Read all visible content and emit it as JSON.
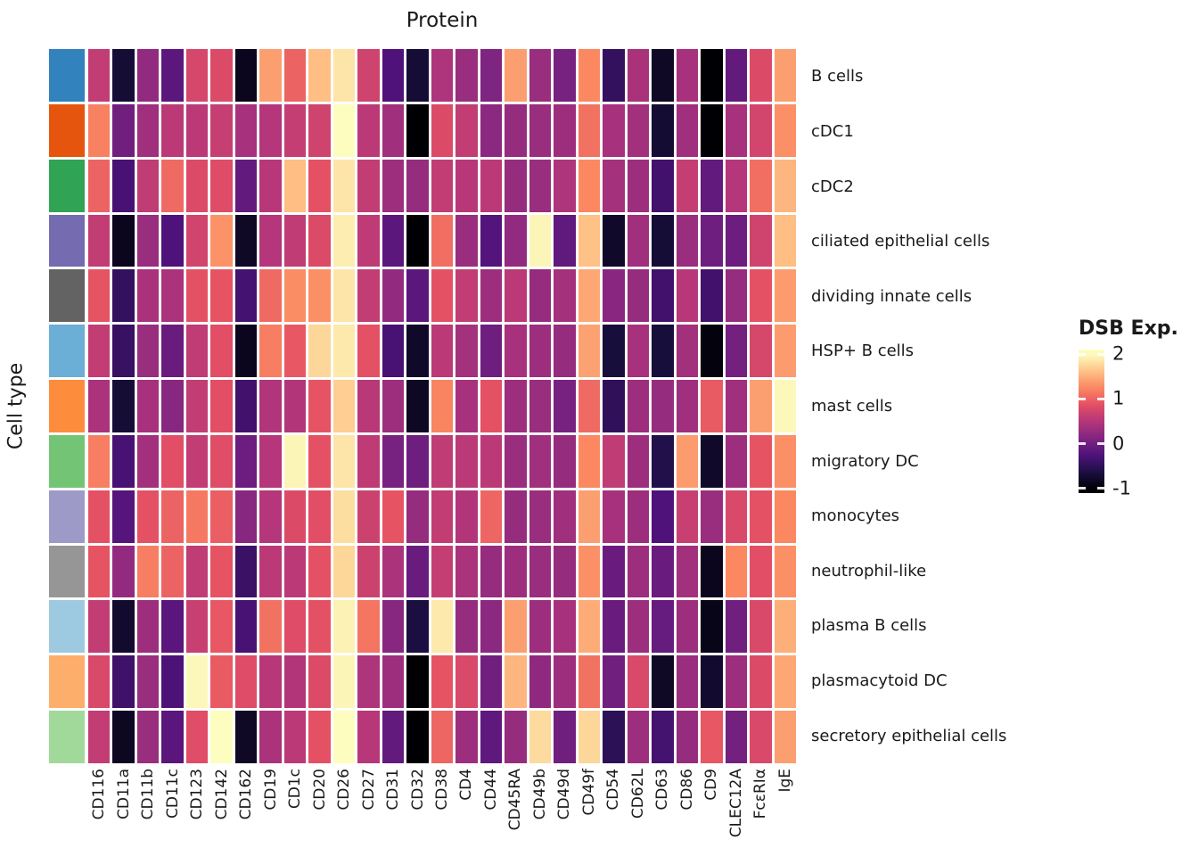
{
  "title": "Protein",
  "y_axis_label": "Cell type",
  "legend": {
    "title": "DSB Exp."
  },
  "chart_data": {
    "type": "heatmap",
    "title": "Protein",
    "xlabel": "Protein",
    "ylabel": "Cell type",
    "legend_title": "DSB Exp.",
    "columns": [
      "CD116",
      "CD11a",
      "CD11b",
      "CD11c",
      "CD123",
      "CD142",
      "CD162",
      "CD19",
      "CD1c",
      "CD20",
      "CD26",
      "CD27",
      "CD31",
      "CD32",
      "CD38",
      "CD4",
      "CD44",
      "CD45RA",
      "CD49b",
      "CD49d",
      "CD49f",
      "CD54",
      "CD62L",
      "CD63",
      "CD86",
      "CD9",
      "CLEC12A",
      "FcεRIα",
      "IgE"
    ],
    "rows": [
      "B cells",
      "cDC1",
      "cDC2",
      "ciliated epithelial cells",
      "dividing innate cells",
      "HSP+ B cells",
      "mast cells",
      "migratory DC",
      "monocytes",
      "neutrophil-like",
      "plasma B cells",
      "plasmacytoid DC",
      "secretory epithelial cells"
    ],
    "row_annotation_colors": [
      "#3182bd",
      "#e6550d",
      "#31a354",
      "#756bb1",
      "#636363",
      "#6baed6",
      "#fd8d3c",
      "#74c476",
      "#9e9ac8",
      "#969696",
      "#9ecae1",
      "#fdae6b",
      "#a1d99b"
    ],
    "values": [
      [
        0.6,
        -0.7,
        0.25,
        -0.15,
        0.75,
        0.8,
        -0.85,
        1.4,
        1.0,
        1.6,
        1.85,
        0.7,
        -0.25,
        -0.7,
        0.45,
        0.3,
        0.1,
        1.4,
        0.3,
        0.05,
        1.25,
        -0.45,
        0.42,
        -0.8,
        0.4,
        -1.0,
        -0.1,
        0.8,
        1.4
      ],
      [
        1.2,
        0.0,
        0.35,
        0.55,
        0.55,
        0.63,
        0.4,
        0.5,
        0.62,
        0.7,
        2.0,
        0.55,
        0.35,
        -1.0,
        0.8,
        0.6,
        0.2,
        0.27,
        0.3,
        0.33,
        1.1,
        0.4,
        0.37,
        -0.73,
        0.35,
        -1.0,
        0.4,
        0.73,
        1.3
      ],
      [
        1.0,
        -0.3,
        0.58,
        1.05,
        0.8,
        0.82,
        -0.1,
        0.52,
        1.6,
        0.88,
        1.85,
        0.6,
        0.32,
        0.28,
        0.6,
        0.52,
        0.55,
        0.27,
        0.3,
        0.45,
        1.25,
        0.38,
        0.33,
        -0.35,
        0.62,
        -0.1,
        0.5,
        1.08,
        1.55
      ],
      [
        0.6,
        -0.85,
        0.3,
        -0.25,
        0.72,
        1.32,
        -0.8,
        0.5,
        0.58,
        0.8,
        1.9,
        0.57,
        -0.15,
        -1.0,
        1.08,
        0.3,
        -0.22,
        0.25,
        1.95,
        -0.12,
        1.62,
        -0.78,
        0.35,
        -0.7,
        0.3,
        -0.02,
        -0.03,
        0.7,
        1.6
      ],
      [
        0.9,
        -0.45,
        0.42,
        0.43,
        0.88,
        0.9,
        -0.33,
        1.05,
        1.28,
        1.3,
        1.85,
        0.6,
        0.25,
        -0.15,
        0.88,
        0.6,
        0.33,
        0.55,
        0.27,
        0.38,
        1.45,
        0.18,
        0.28,
        -0.35,
        0.52,
        -0.35,
        0.28,
        0.88,
        1.38
      ],
      [
        0.6,
        -0.42,
        0.3,
        -0.05,
        0.58,
        0.85,
        -0.85,
        1.18,
        0.93,
        1.75,
        1.87,
        0.87,
        -0.3,
        -0.78,
        0.55,
        0.38,
        -0.02,
        0.4,
        0.32,
        0.27,
        1.42,
        -0.68,
        0.4,
        -0.68,
        0.37,
        -0.95,
        0.02,
        0.75,
        1.38
      ],
      [
        0.43,
        -0.7,
        0.4,
        0.17,
        0.6,
        0.85,
        -0.35,
        0.47,
        0.48,
        0.9,
        1.7,
        0.53,
        0.32,
        -0.82,
        1.22,
        0.4,
        0.87,
        0.33,
        0.3,
        0.05,
        1.05,
        -0.48,
        0.33,
        0.28,
        0.35,
        0.95,
        0.35,
        1.4,
        1.97
      ],
      [
        1.18,
        -0.3,
        0.37,
        0.85,
        0.6,
        0.83,
        -0.03,
        0.5,
        1.95,
        0.88,
        1.85,
        0.57,
        0.05,
        -0.02,
        0.58,
        0.55,
        0.55,
        0.3,
        0.35,
        0.28,
        1.25,
        0.58,
        0.33,
        -0.58,
        1.38,
        -0.78,
        0.33,
        0.9,
        1.3
      ],
      [
        0.88,
        -0.2,
        0.88,
        1.0,
        1.15,
        0.97,
        0.17,
        0.5,
        0.8,
        0.85,
        1.8,
        0.68,
        0.9,
        0.28,
        0.6,
        0.48,
        1.02,
        0.27,
        0.3,
        0.35,
        1.4,
        0.4,
        0.32,
        -0.25,
        0.65,
        0.3,
        0.78,
        0.87,
        1.25
      ],
      [
        0.9,
        0.25,
        1.18,
        1.0,
        0.58,
        0.9,
        -0.4,
        0.55,
        0.55,
        0.88,
        1.75,
        0.68,
        0.43,
        -0.05,
        0.62,
        0.43,
        0.28,
        0.33,
        0.3,
        0.28,
        1.3,
        -0.05,
        0.33,
        -0.05,
        0.37,
        -0.85,
        1.25,
        0.85,
        1.3
      ],
      [
        0.6,
        -0.75,
        0.32,
        -0.17,
        0.65,
        0.93,
        -0.3,
        1.1,
        0.82,
        0.88,
        1.93,
        1.12,
        0.17,
        -0.65,
        1.87,
        0.28,
        0.2,
        1.4,
        0.32,
        0.4,
        1.48,
        -0.05,
        0.32,
        -0.08,
        0.32,
        -0.88,
        0.0,
        0.78,
        1.5
      ],
      [
        0.78,
        -0.37,
        0.3,
        -0.27,
        1.97,
        0.95,
        0.82,
        0.52,
        0.48,
        0.8,
        1.95,
        0.45,
        0.33,
        -1.0,
        0.9,
        0.78,
        0.0,
        1.55,
        0.22,
        0.33,
        1.1,
        0.0,
        0.78,
        -0.8,
        0.3,
        -0.75,
        0.32,
        0.8,
        1.45
      ],
      [
        0.6,
        -0.83,
        0.3,
        -0.17,
        0.83,
        2.0,
        -0.8,
        0.43,
        0.55,
        0.87,
        2.0,
        0.52,
        -0.1,
        -1.0,
        1.02,
        0.33,
        -0.13,
        0.28,
        1.78,
        0.0,
        1.75,
        -0.5,
        0.33,
        -0.33,
        0.28,
        0.92,
        0.03,
        0.78,
        1.4
      ]
    ],
    "value_domain": [
      -1,
      2
    ],
    "colorbar": {
      "range": [
        -1.1,
        2.1
      ],
      "ticks": [
        2,
        1,
        0,
        -1
      ]
    },
    "colormap": "magma",
    "colormap_anchors": [
      {
        "v": -1.0,
        "hex": "#000004"
      },
      {
        "v": -0.625,
        "hex": "#1c1044"
      },
      {
        "v": -0.25,
        "hex": "#4f127b"
      },
      {
        "v": 0.125,
        "hex": "#812581"
      },
      {
        "v": 0.5,
        "hex": "#b5367a"
      },
      {
        "v": 0.875,
        "hex": "#e55064"
      },
      {
        "v": 1.25,
        "hex": "#fb8861"
      },
      {
        "v": 1.625,
        "hex": "#fec287"
      },
      {
        "v": 2.0,
        "hex": "#fcfdbf"
      }
    ],
    "grid": false,
    "legend_position": "right"
  }
}
